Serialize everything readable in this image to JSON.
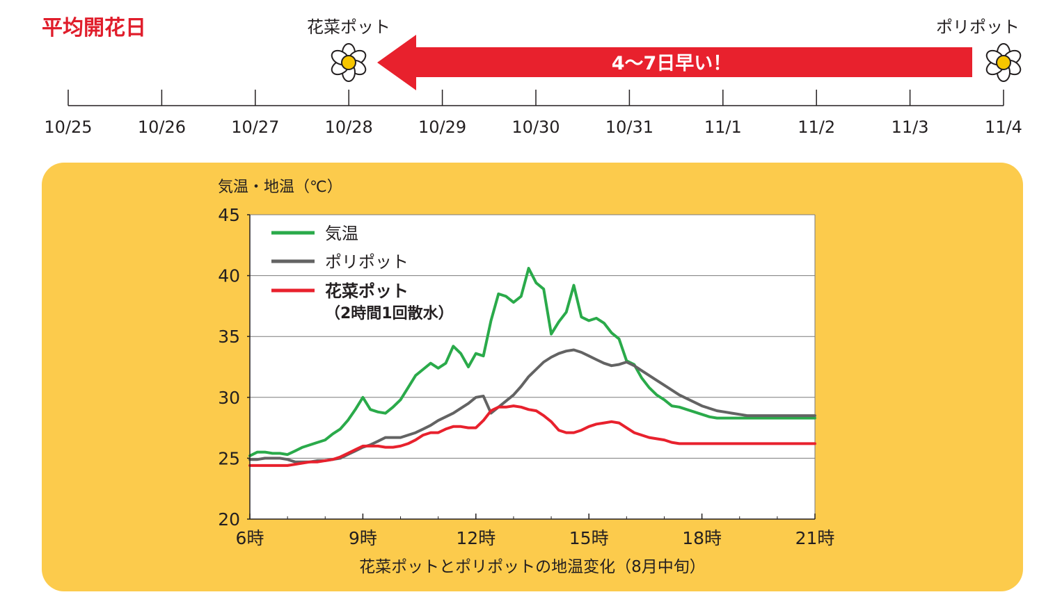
{
  "header": {
    "title": "平均開花日",
    "left_pot_label": "花菜ポット",
    "right_pot_label": "ポリポット",
    "arrow_text": "4〜7日早い！",
    "title_color": "#e01d2b",
    "arrow_color": "#e8212d"
  },
  "timeline": {
    "dates": [
      "10/25",
      "10/26",
      "10/27",
      "10/28",
      "10/29",
      "10/30",
      "10/31",
      "11/1",
      "11/2",
      "11/3",
      "11/4"
    ],
    "left_pot_date": "10/28",
    "right_pot_date": "11/4"
  },
  "chart_data": {
    "type": "line",
    "ylabel": "気温・地温（℃）",
    "xlabel": "花菜ポットとポリポットの地温変化（8月中旬）",
    "ylim": [
      20,
      45
    ],
    "yticks": [
      "20",
      "25",
      "30",
      "35",
      "40",
      "45"
    ],
    "xlim": [
      6,
      21
    ],
    "xticks": [
      {
        "x": 6,
        "label": "6時"
      },
      {
        "x": 9,
        "label": "9時"
      },
      {
        "x": 12,
        "label": "12時"
      },
      {
        "x": 15,
        "label": "15時"
      },
      {
        "x": 18,
        "label": "18時"
      },
      {
        "x": 21,
        "label": "21時"
      }
    ],
    "grid": "horizontal",
    "legend_position": "top-left",
    "series": [
      {
        "name": "気温",
        "color": "#2aaa4a",
        "x": [
          6.0,
          6.2,
          6.4,
          6.6,
          6.8,
          7.0,
          7.2,
          7.4,
          7.6,
          7.8,
          8.0,
          8.2,
          8.4,
          8.6,
          8.8,
          9.0,
          9.2,
          9.4,
          9.6,
          9.8,
          10.0,
          10.2,
          10.4,
          10.6,
          10.8,
          11.0,
          11.2,
          11.4,
          11.6,
          11.8,
          12.0,
          12.2,
          12.4,
          12.6,
          12.8,
          13.0,
          13.2,
          13.4,
          13.6,
          13.8,
          14.0,
          14.2,
          14.4,
          14.6,
          14.8,
          15.0,
          15.2,
          15.4,
          15.6,
          15.8,
          16.0,
          16.2,
          16.4,
          16.6,
          16.8,
          17.0,
          17.2,
          17.4,
          17.6,
          17.8,
          18.0,
          18.2,
          18.4,
          18.6,
          18.8,
          19.0,
          19.2,
          19.4,
          19.6,
          19.8,
          20.0,
          20.2,
          20.4,
          20.6,
          20.8,
          21.0
        ],
        "values": [
          25.2,
          25.5,
          25.5,
          25.4,
          25.4,
          25.3,
          25.6,
          25.9,
          26.1,
          26.3,
          26.5,
          27.0,
          27.4,
          28.1,
          29.0,
          30.0,
          29.0,
          28.8,
          28.7,
          29.2,
          29.8,
          30.8,
          31.8,
          32.3,
          32.8,
          32.4,
          32.8,
          34.2,
          33.6,
          32.5,
          33.6,
          33.4,
          36.3,
          38.5,
          38.3,
          37.8,
          38.3,
          40.6,
          39.4,
          38.9,
          35.2,
          36.2,
          37.0,
          39.2,
          36.6,
          36.3,
          36.5,
          36.1,
          35.3,
          34.8,
          33.0,
          32.7,
          31.6,
          30.8,
          30.2,
          29.8,
          29.3,
          29.2,
          29.0,
          28.8,
          28.6,
          28.4,
          28.3,
          28.3,
          28.3,
          28.3,
          28.3,
          28.3,
          28.3,
          28.3,
          28.3,
          28.3,
          28.3,
          28.3,
          28.3,
          28.3
        ]
      },
      {
        "name": "ポリポット",
        "color": "#636363",
        "x": [
          6.0,
          6.2,
          6.4,
          6.6,
          6.8,
          7.0,
          7.2,
          7.4,
          7.6,
          7.8,
          8.0,
          8.2,
          8.4,
          8.6,
          8.8,
          9.0,
          9.2,
          9.4,
          9.6,
          9.8,
          10.0,
          10.2,
          10.4,
          10.6,
          10.8,
          11.0,
          11.2,
          11.4,
          11.6,
          11.8,
          12.0,
          12.2,
          12.4,
          12.6,
          12.8,
          13.0,
          13.2,
          13.4,
          13.6,
          13.8,
          14.0,
          14.2,
          14.4,
          14.6,
          14.8,
          15.0,
          15.2,
          15.4,
          15.6,
          15.8,
          16.0,
          16.2,
          16.4,
          16.6,
          16.8,
          17.0,
          17.2,
          17.4,
          17.6,
          17.8,
          18.0,
          18.2,
          18.4,
          18.6,
          18.8,
          19.0,
          19.2,
          19.4,
          19.6,
          19.8,
          20.0,
          20.2,
          20.4,
          20.6,
          20.8,
          21.0
        ],
        "values": [
          24.9,
          24.9,
          25.0,
          25.0,
          25.0,
          24.9,
          24.7,
          24.7,
          24.7,
          24.8,
          24.8,
          24.9,
          25.0,
          25.3,
          25.6,
          25.9,
          26.1,
          26.4,
          26.7,
          26.7,
          26.7,
          26.9,
          27.1,
          27.4,
          27.7,
          28.1,
          28.4,
          28.7,
          29.1,
          29.5,
          30.0,
          30.1,
          28.7,
          29.2,
          29.7,
          30.2,
          30.9,
          31.7,
          32.3,
          32.9,
          33.3,
          33.6,
          33.8,
          33.9,
          33.7,
          33.4,
          33.1,
          32.8,
          32.6,
          32.7,
          32.9,
          32.6,
          32.2,
          31.8,
          31.4,
          31.0,
          30.6,
          30.2,
          29.9,
          29.6,
          29.3,
          29.1,
          28.9,
          28.8,
          28.7,
          28.6,
          28.5,
          28.5,
          28.5,
          28.5,
          28.5,
          28.5,
          28.5,
          28.5,
          28.5,
          28.5
        ]
      },
      {
        "name": "花菜ポット（2時間1回散水）",
        "color": "#e8212d",
        "x": [
          6.0,
          6.2,
          6.4,
          6.6,
          6.8,
          7.0,
          7.2,
          7.4,
          7.6,
          7.8,
          8.0,
          8.2,
          8.4,
          8.6,
          8.8,
          9.0,
          9.2,
          9.4,
          9.6,
          9.8,
          10.0,
          10.2,
          10.4,
          10.6,
          10.8,
          11.0,
          11.2,
          11.4,
          11.6,
          11.8,
          12.0,
          12.2,
          12.4,
          12.6,
          12.8,
          13.0,
          13.2,
          13.4,
          13.6,
          13.8,
          14.0,
          14.2,
          14.4,
          14.6,
          14.8,
          15.0,
          15.2,
          15.4,
          15.6,
          15.8,
          16.0,
          16.2,
          16.4,
          16.6,
          16.8,
          17.0,
          17.2,
          17.4,
          17.6,
          17.8,
          18.0,
          18.2,
          18.4,
          18.6,
          18.8,
          19.0,
          19.2,
          19.4,
          19.6,
          19.8,
          20.0,
          20.2,
          20.4,
          20.6,
          20.8,
          21.0
        ],
        "values": [
          24.4,
          24.4,
          24.4,
          24.4,
          24.4,
          24.4,
          24.5,
          24.6,
          24.7,
          24.7,
          24.8,
          24.9,
          25.1,
          25.4,
          25.7,
          26.0,
          26.0,
          26.0,
          25.9,
          25.9,
          26.0,
          26.2,
          26.5,
          26.9,
          27.1,
          27.1,
          27.4,
          27.6,
          27.6,
          27.5,
          27.5,
          28.1,
          28.9,
          29.2,
          29.2,
          29.3,
          29.2,
          29.0,
          28.9,
          28.5,
          28.0,
          27.3,
          27.1,
          27.1,
          27.3,
          27.6,
          27.8,
          27.9,
          28.0,
          27.9,
          27.5,
          27.1,
          26.9,
          26.7,
          26.6,
          26.5,
          26.3,
          26.2,
          26.2,
          26.2,
          26.2,
          26.2,
          26.2,
          26.2,
          26.2,
          26.2,
          26.2,
          26.2,
          26.2,
          26.2,
          26.2,
          26.2,
          26.2,
          26.2,
          26.2,
          26.2
        ]
      }
    ]
  }
}
